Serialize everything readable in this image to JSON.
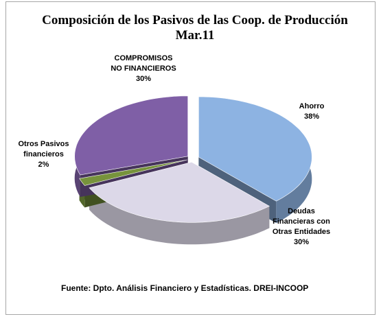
{
  "chart_data": {
    "type": "pie",
    "title": "Composición de los Pasivos de las  Coop. de Producción  Mar.11",
    "categories": [
      "Ahorro",
      "Deudas Financieras con Otras Entidades",
      "Otros Pasivos financieros",
      "COMPROMISOS NO FINANCIEROS"
    ],
    "values": [
      38,
      30,
      2,
      30
    ],
    "value_labels": [
      "38%",
      "30%",
      "2%",
      "30%"
    ],
    "colors": [
      "#8db3e2",
      "#dcd8e8",
      "#77933c",
      "#7f5fa6"
    ],
    "source": "Fuente: Dpto. Análisis Financiero y Estadísticas. DREI-INCOOP"
  }
}
